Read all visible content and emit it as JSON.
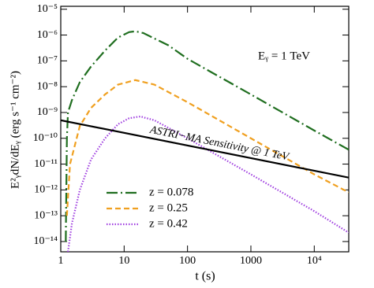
{
  "chart_data": {
    "type": "line",
    "x_label": "t (s)",
    "y_label": "E²ᵧdN/dEᵧ (erg s⁻¹ cm⁻²)",
    "annotation": "Eᵧ = 1 TeV",
    "xscale": "log",
    "yscale": "log",
    "xlim": [
      1,
      35000
    ],
    "ylim": [
      4e-15,
      1.3e-05
    ],
    "xticks": [
      1,
      10,
      100,
      1000,
      {
        "value": 10000,
        "label": "10⁴"
      }
    ],
    "yticks": [
      {
        "value": 1e-14,
        "label": "10⁻¹⁴"
      },
      {
        "value": 1e-13,
        "label": "10⁻¹³"
      },
      {
        "value": 1e-12,
        "label": "10⁻¹²"
      },
      {
        "value": 1e-11,
        "label": "10⁻¹¹"
      },
      {
        "value": 1e-10,
        "label": "10⁻¹⁰"
      },
      {
        "value": 1e-09,
        "label": "10⁻⁹"
      },
      {
        "value": 1e-08,
        "label": "10⁻⁸"
      },
      {
        "value": 1e-07,
        "label": "10⁻⁷"
      },
      {
        "value": 1e-06,
        "label": "10⁻⁶"
      },
      {
        "value": 1e-05,
        "label": "10⁻⁵"
      }
    ],
    "legend": "lower left",
    "series": [
      {
        "name": "z = 0.078",
        "color": "#1f6e1f",
        "dash": "dashdot",
        "x": [
          1.2,
          1.25,
          1.3,
          1.5,
          2,
          3,
          5,
          8,
          12,
          15,
          20,
          50,
          100,
          1000,
          10000,
          35000
        ],
        "values": [
          1e-14,
          1e-10,
          1e-09,
          3e-09,
          1.5e-08,
          6e-08,
          2.5e-07,
          8e-07,
          1.3e-06,
          1.4e-06,
          1.2e-06,
          4e-07,
          1.2e-07,
          5e-09,
          2e-10,
          3.6e-11
        ]
      },
      {
        "name": "z = 0.25",
        "color": "#f0a020",
        "dash": "dashed",
        "x": [
          1.25,
          1.4,
          2,
          3,
          5,
          8,
          15,
          30,
          100,
          1000,
          10000,
          35000
        ],
        "values": [
          1e-13,
          1e-11,
          3e-10,
          1.5e-09,
          5e-09,
          1.2e-08,
          1.8e-08,
          1.2e-08,
          2.5e-09,
          1e-10,
          4e-12,
          8e-13
        ]
      },
      {
        "name": "z = 0.42",
        "color": "#a040e0",
        "dash": "dotted",
        "x": [
          1.3,
          1.5,
          2,
          3,
          5,
          8,
          12,
          18,
          30,
          100,
          1000,
          10000,
          35000
        ],
        "values": [
          4e-15,
          5e-14,
          1e-12,
          1.5e-11,
          1e-10,
          3.5e-10,
          6e-10,
          7e-10,
          5e-10,
          1e-10,
          4e-12,
          1.5e-13,
          2.2e-14
        ]
      },
      {
        "label": "ASTRI−MA Sensitivity @ 1 TeV",
        "color": "#000000",
        "dash": "solid",
        "x": [
          1,
          35000
        ],
        "values": [
          5e-10,
          3e-12
        ]
      }
    ]
  }
}
